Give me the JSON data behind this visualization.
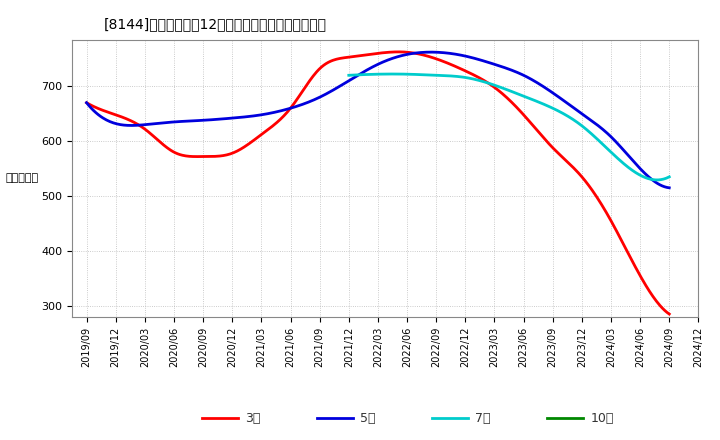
{
  "title": "[8144]　当期純利益12か月移動合計の平均値の推移",
  "ylabel": "（百万円）",
  "bg_color": "#ffffff",
  "plot_bg_color": "#ffffff",
  "grid_color": "#aaaaaa",
  "series": {
    "3年": {
      "color": "#ff0000",
      "xs": [
        0,
        1,
        2,
        3,
        4,
        5,
        6,
        7,
        8,
        9,
        10,
        11,
        12,
        13,
        14,
        15,
        16,
        17,
        18,
        19,
        20
      ],
      "ys": [
        670,
        648,
        622,
        580,
        572,
        578,
        612,
        660,
        732,
        753,
        760,
        762,
        750,
        728,
        698,
        648,
        588,
        535,
        455,
        355,
        285
      ]
    },
    "5年": {
      "color": "#0000dd",
      "xs": [
        0,
        1,
        2,
        3,
        4,
        5,
        6,
        7,
        8,
        9,
        10,
        11,
        12,
        13,
        14,
        15,
        16,
        17,
        18,
        19,
        20
      ],
      "ys": [
        670,
        632,
        630,
        635,
        638,
        642,
        648,
        660,
        680,
        710,
        740,
        758,
        762,
        755,
        740,
        720,
        688,
        650,
        608,
        550,
        515
      ]
    },
    "7年": {
      "color": "#00cccc",
      "xs": [
        9,
        10,
        11,
        12,
        13,
        14,
        15,
        16,
        17,
        18,
        19,
        20
      ],
      "ys": [
        720,
        722,
        722,
        720,
        716,
        702,
        682,
        660,
        628,
        580,
        538,
        535
      ]
    },
    "10年": {
      "color": "#008800",
      "xs": [],
      "ys": []
    }
  },
  "xtick_labels": [
    "2019/09",
    "2019/12",
    "2020/03",
    "2020/06",
    "2020/09",
    "2020/12",
    "2021/03",
    "2021/06",
    "2021/09",
    "2021/12",
    "2022/03",
    "2022/06",
    "2022/09",
    "2022/12",
    "2023/03",
    "2023/06",
    "2023/09",
    "2023/12",
    "2024/03",
    "2024/06",
    "2024/09",
    "2024/12"
  ],
  "ylim": [
    280,
    785
  ],
  "yticks": [
    300,
    400,
    500,
    600,
    700
  ],
  "line_width": 2.0,
  "legend_labels": [
    "3年",
    "5年",
    "7年",
    "10年"
  ],
  "legend_colors": [
    "#ff0000",
    "#0000dd",
    "#00cccc",
    "#008800"
  ]
}
